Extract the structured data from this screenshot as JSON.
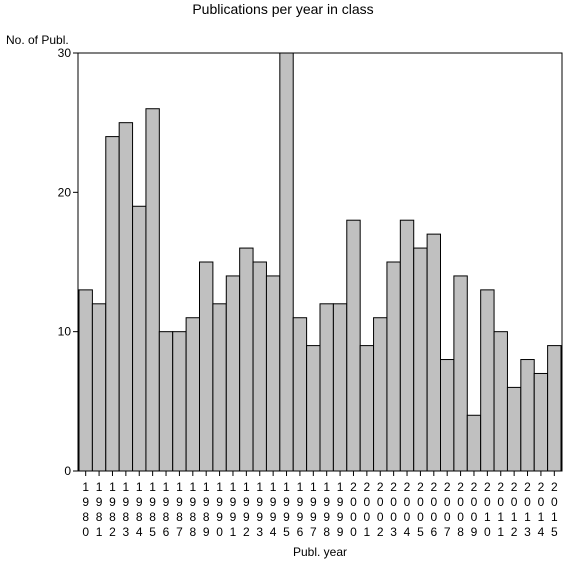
{
  "chart_data": {
    "type": "bar",
    "title": "Publications per year in class",
    "ylabel": "No. of Publ.",
    "xlabel": "Publ. year",
    "ylim": [
      0,
      30
    ],
    "yticks": [
      0,
      10,
      20,
      30
    ],
    "grid": false,
    "legend": "none",
    "categories": [
      "1980",
      "1981",
      "1982",
      "1983",
      "1984",
      "1985",
      "1986",
      "1987",
      "1988",
      "1989",
      "1990",
      "1991",
      "1992",
      "1993",
      "1994",
      "1995",
      "1996",
      "1997",
      "1998",
      "1999",
      "2000",
      "2001",
      "2002",
      "2003",
      "2004",
      "2005",
      "2006",
      "2007",
      "2008",
      "2009",
      "2010",
      "2011",
      "2012",
      "2013",
      "2014",
      "2015"
    ],
    "values": [
      13,
      12,
      24,
      25,
      19,
      26,
      10,
      10,
      11,
      15,
      12,
      14,
      16,
      15,
      14,
      30,
      11,
      9,
      12,
      12,
      18,
      9,
      11,
      15,
      18,
      16,
      17,
      8,
      14,
      4,
      13,
      10,
      6,
      8,
      7,
      9
    ],
    "colors": {
      "bar_fill": "#c0c0c0",
      "bar_stroke": "#000000",
      "axis": "#000000"
    }
  }
}
